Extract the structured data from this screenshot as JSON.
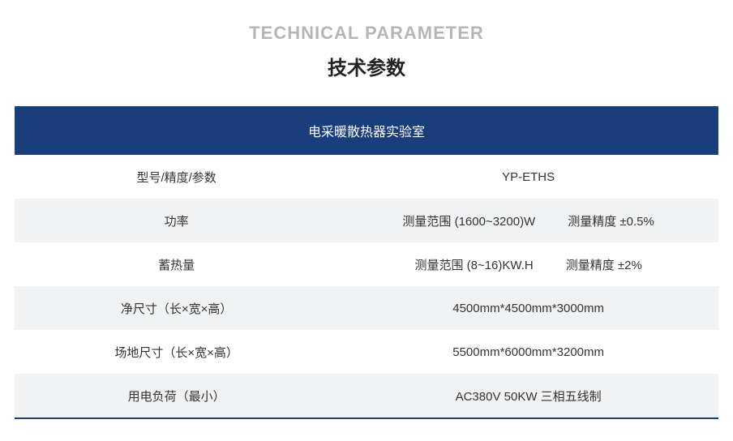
{
  "title_en": "TECHNICAL PARAMETER",
  "title_cn": "技术参数",
  "colors": {
    "header_bg": "#1a3d7c",
    "header_text": "#ffffff",
    "row_alt_bg": "#f1f2f3",
    "text": "#333333",
    "title_en_color": "#b6b6b6",
    "title_cn_color": "#222222",
    "bottom_line": "#1a3d7c",
    "page_bg": "#ffffff"
  },
  "typography": {
    "title_en_fontsize": 22,
    "title_cn_fontsize": 24,
    "header_fontsize": 16,
    "cell_fontsize": 15
  },
  "table": {
    "header": "电采暖散热器实验室",
    "rows": [
      {
        "alt": false,
        "label": "型号/精度/参数",
        "value": "YP-ETHS"
      },
      {
        "alt": true,
        "label": "功率",
        "value_a": "测量范围 (1600~3200)W",
        "value_b": "测量精度 ±0.5%"
      },
      {
        "alt": false,
        "label": "蓄热量",
        "value_a": "测量范围 (8~16)KW.H",
        "value_b": "测量精度 ±2%"
      },
      {
        "alt": true,
        "label": "净尺寸（长×宽×高）",
        "value": "4500mm*4500mm*3000mm"
      },
      {
        "alt": false,
        "label": "场地尺寸（长×宽×高）",
        "value": "5500mm*6000mm*3200mm"
      },
      {
        "alt": true,
        "label": "用电负荷（最小）",
        "value": "AC380V  50KW 三相五线制"
      }
    ]
  }
}
